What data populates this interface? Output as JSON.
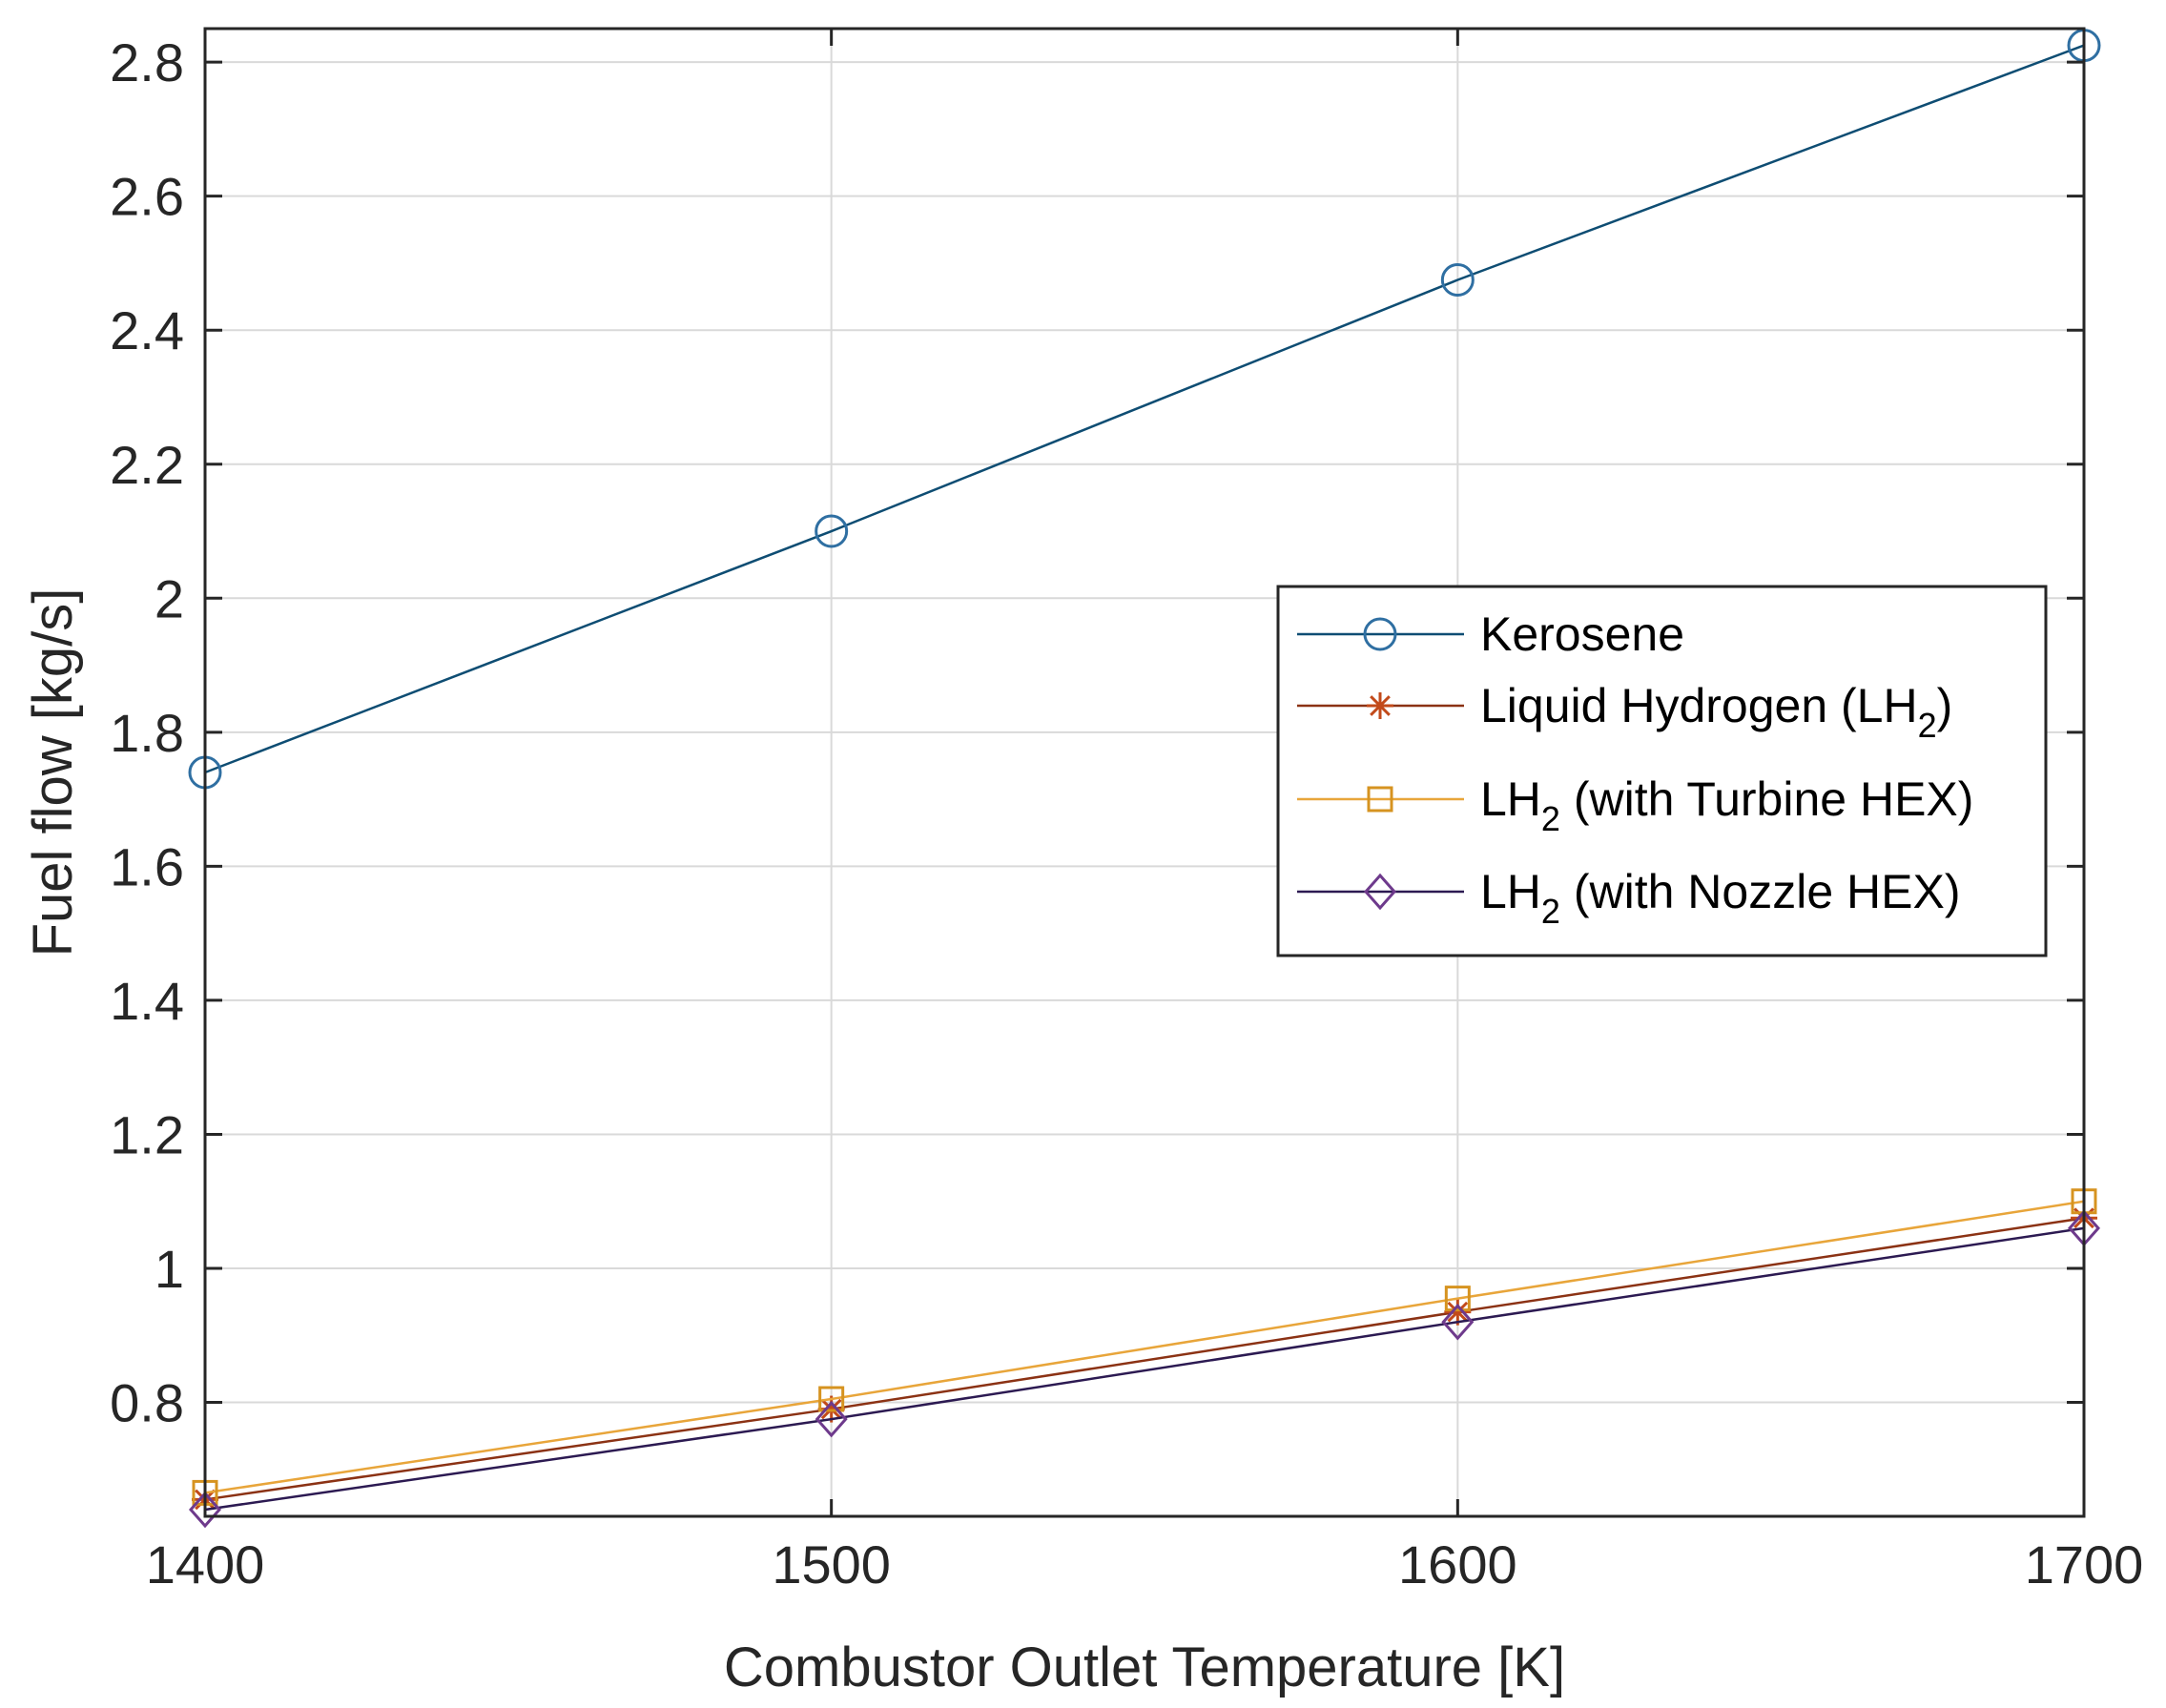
{
  "chart_data": {
    "type": "line",
    "title": "",
    "xlabel": "Combustor Outlet Temperature [K]",
    "ylabel": "Fuel flow [kg/s]",
    "xlim": [
      1400,
      1700
    ],
    "ylim": [
      0.63,
      2.85
    ],
    "xticks": [
      1400,
      1500,
      1600,
      1700
    ],
    "xtick_labels": [
      "1400",
      "1500",
      "1600",
      "1700"
    ],
    "yticks": [
      0.8,
      1.0,
      1.2,
      1.4,
      1.6,
      1.8,
      2.0,
      2.2,
      2.4,
      2.6,
      2.8
    ],
    "ytick_labels": [
      "0.8",
      "1",
      "1.2",
      "1.4",
      "1.6",
      "1.8",
      "2",
      "2.2",
      "2.4",
      "2.6",
      "2.8"
    ],
    "grid": true,
    "legend_position": "right",
    "x": [
      1400,
      1500,
      1600,
      1700
    ],
    "series": [
      {
        "name": "Kerosene",
        "name_main": "Kerosene",
        "name_sub": "",
        "name_rest": "",
        "marker": "circle",
        "color": "#0e4d73",
        "marker_color": "#2f6fa2",
        "values": [
          1.74,
          2.1,
          2.475,
          2.825
        ]
      },
      {
        "name": "Liquid Hydrogen (LH2)",
        "name_main": "Liquid Hydrogen (LH",
        "name_sub": "2",
        "name_rest": ")",
        "marker": "star",
        "color": "#8b3214",
        "marker_color": "#c24a1a",
        "values": [
          0.655,
          0.79,
          0.935,
          1.075
        ]
      },
      {
        "name": "LH2 (with Turbine HEX)",
        "name_main": "LH",
        "name_sub": "2",
        "name_rest": " (with Turbine HEX)",
        "marker": "square",
        "color": "#e8a53a",
        "marker_color": "#d69320",
        "values": [
          0.665,
          0.805,
          0.955,
          1.1
        ]
      },
      {
        "name": "LH2 (with Nozzle HEX)",
        "name_main": "LH",
        "name_sub": "2",
        "name_rest": " (with Nozzle HEX)",
        "marker": "diamond",
        "color": "#2c1a52",
        "marker_color": "#6e3a8c",
        "values": [
          0.64,
          0.775,
          0.92,
          1.06
        ]
      }
    ]
  }
}
